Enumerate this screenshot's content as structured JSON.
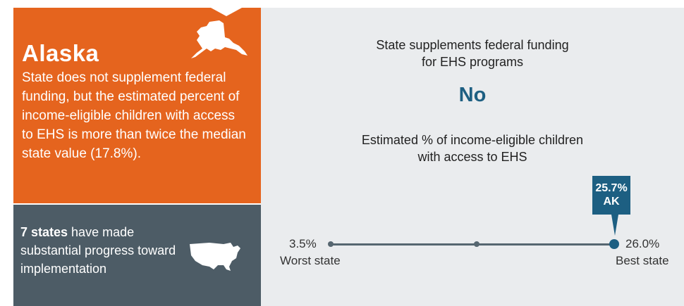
{
  "state": {
    "name": "Alaska",
    "description": "State does not supplement federal funding, but the estimated percent of income-eligible children with access to EHS is more than twice the median state value (17.8%)."
  },
  "progress": {
    "count": "7 states",
    "text": " have made substantial progress toward implementation"
  },
  "funding": {
    "question_line1": "State supplements federal funding",
    "question_line2": "for EHS programs",
    "answer": "No"
  },
  "access": {
    "question_line1": "Estimated % of income-eligible children",
    "question_line2": "with access to EHS",
    "min_label": "3.5%",
    "max_label": "26.0%",
    "worst_label": "Worst state",
    "best_label": "Best state",
    "state_value": "25.7%",
    "state_abbr": "AK",
    "min_value": 3.5,
    "max_value": 26.0,
    "value": 25.7
  },
  "colors": {
    "orange": "#e5641e",
    "slate": "#4d5c66",
    "blue": "#1d5f82",
    "panel": "#eaecee"
  },
  "icons": [
    "alaska-map-icon",
    "us-map-icon"
  ]
}
